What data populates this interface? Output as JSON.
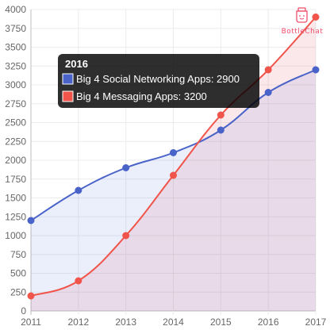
{
  "chart_data": {
    "type": "area",
    "categories": [
      "2011",
      "2012",
      "2013",
      "2014",
      "2015",
      "2016",
      "2017"
    ],
    "series": [
      {
        "name": "Big 4 Social Networking Apps",
        "values": [
          1200,
          1600,
          1900,
          2100,
          2400,
          2900,
          3200
        ],
        "color": "#4a63c9",
        "fill": "rgba(100,130,230,0.13)"
      },
      {
        "name": "Big 4 Messaging Apps",
        "values": [
          200,
          400,
          1000,
          1800,
          2600,
          3200,
          3900
        ],
        "color": "#f0544a",
        "fill": "rgba(220,90,110,0.14)"
      }
    ],
    "ylim": [
      0,
      4000
    ],
    "ytick_step": 250,
    "grid": true,
    "legend": "none",
    "tooltip": {
      "title": "2016",
      "category_index": 5,
      "position": "top-left"
    }
  },
  "watermark": {
    "text": "BottleChat",
    "color": "#ef4d6b"
  }
}
